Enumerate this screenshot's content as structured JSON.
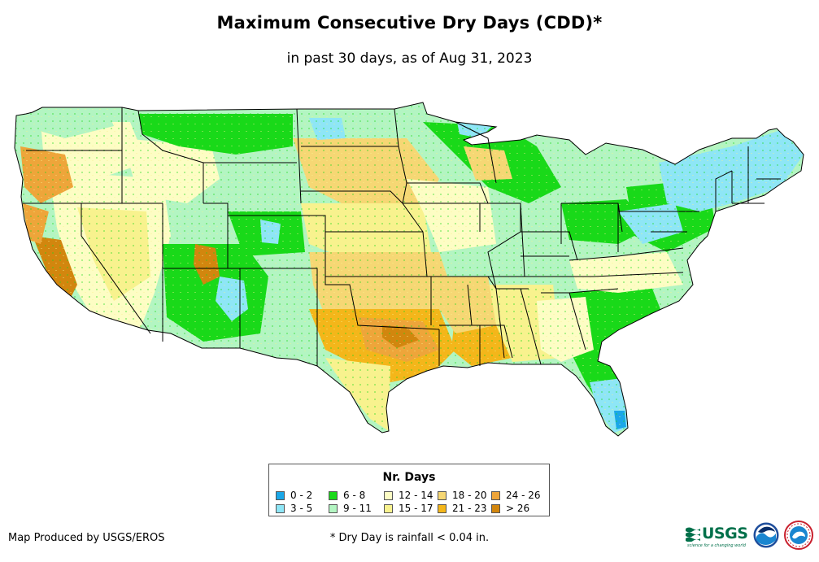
{
  "header": {
    "title": "Maximum Consecutive Dry Days (CDD)*",
    "subtitle": "in past 30 days, as of Aug 31, 2023"
  },
  "legend": {
    "title": "Nr. Days",
    "items": [
      {
        "label": "0 - 2",
        "color": "#1aa7e8"
      },
      {
        "label": "3 - 5",
        "color": "#8ee6f6"
      },
      {
        "label": "6 - 8",
        "color": "#19d919"
      },
      {
        "label": "9 - 11",
        "color": "#b3f5c2"
      },
      {
        "label": "12 - 14",
        "color": "#fdfdc4"
      },
      {
        "label": "15 - 17",
        "color": "#f8f28e"
      },
      {
        "label": "18 - 20",
        "color": "#f6d774"
      },
      {
        "label": "21 - 23",
        "color": "#f4b61a"
      },
      {
        "label": "24 - 26",
        "color": "#eea53a"
      },
      {
        "label": "> 26",
        "color": "#d2860e"
      }
    ]
  },
  "footer": {
    "credit": "Map Produced by USGS/EROS",
    "footnote": "* Dry Day is rainfall < 0.04 in.",
    "usgs_logo": "USGS",
    "usgs_tagline": "science for a changing world"
  },
  "icons": [
    "usgs-logo",
    "noaa-logo",
    "nws-logo"
  ]
}
